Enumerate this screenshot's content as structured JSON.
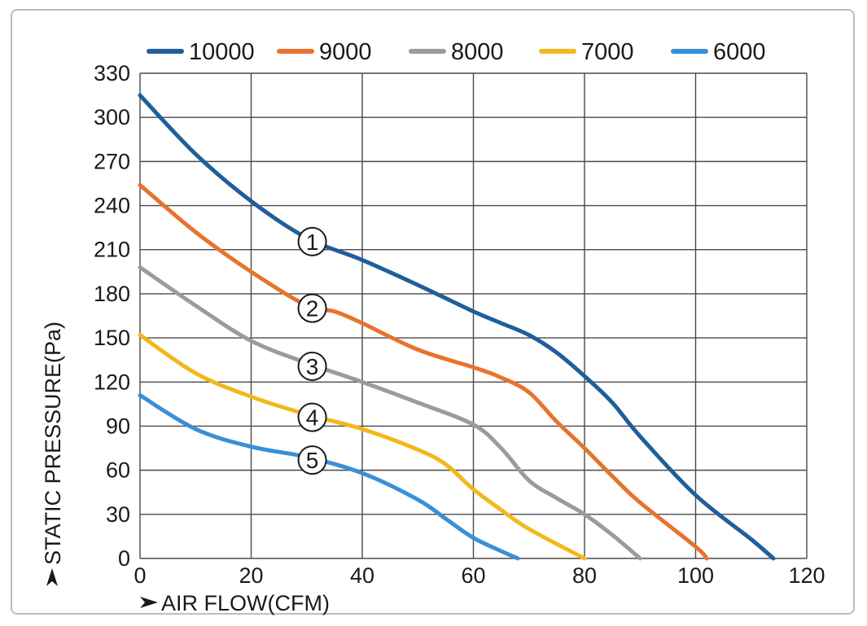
{
  "chart_data": {
    "type": "line",
    "xlabel": "AIR FLOW(CFM)",
    "ylabel": "STATIC PRESSURE(Pa)",
    "xlim": [
      0,
      120
    ],
    "ylim": [
      0,
      330
    ],
    "x_ticks": [
      0,
      20,
      40,
      60,
      80,
      100,
      120
    ],
    "y_ticks": [
      0,
      30,
      60,
      90,
      120,
      150,
      180,
      210,
      240,
      270,
      300,
      330
    ],
    "grid": true,
    "legend_position": "top",
    "series": [
      {
        "name": "10000",
        "color": "#1f5f9a",
        "marker": "①",
        "points": [
          [
            0,
            315
          ],
          [
            10,
            275
          ],
          [
            20,
            243
          ],
          [
            30,
            218
          ],
          [
            40,
            203
          ],
          [
            50,
            186
          ],
          [
            60,
            168
          ],
          [
            65,
            160
          ],
          [
            70,
            152
          ],
          [
            75,
            140
          ],
          [
            80,
            124
          ],
          [
            85,
            106
          ],
          [
            90,
            83
          ],
          [
            100,
            43
          ],
          [
            110,
            13
          ],
          [
            114,
            0
          ]
        ]
      },
      {
        "name": "9000",
        "color": "#e8732e",
        "marker": "②",
        "points": [
          [
            0,
            254
          ],
          [
            10,
            222
          ],
          [
            20,
            195
          ],
          [
            30,
            172
          ],
          [
            35,
            168
          ],
          [
            40,
            160
          ],
          [
            50,
            142
          ],
          [
            60,
            130
          ],
          [
            65,
            123
          ],
          [
            70,
            113
          ],
          [
            75,
            93
          ],
          [
            80,
            75
          ],
          [
            85,
            56
          ],
          [
            90,
            38
          ],
          [
            100,
            8
          ],
          [
            102,
            0
          ]
        ]
      },
      {
        "name": "8000",
        "color": "#9b9b9b",
        "marker": "③",
        "points": [
          [
            0,
            198
          ],
          [
            10,
            172
          ],
          [
            20,
            148
          ],
          [
            30,
            133
          ],
          [
            40,
            120
          ],
          [
            50,
            106
          ],
          [
            60,
            91
          ],
          [
            65,
            75
          ],
          [
            70,
            53
          ],
          [
            75,
            41
          ],
          [
            80,
            30
          ],
          [
            85,
            16
          ],
          [
            90,
            0
          ]
        ]
      },
      {
        "name": "7000",
        "color": "#f2b81b",
        "marker": "④",
        "points": [
          [
            0,
            152
          ],
          [
            10,
            126
          ],
          [
            20,
            110
          ],
          [
            30,
            98
          ],
          [
            40,
            88
          ],
          [
            50,
            74
          ],
          [
            55,
            64
          ],
          [
            60,
            47
          ],
          [
            65,
            33
          ],
          [
            70,
            20
          ],
          [
            80,
            0
          ]
        ]
      },
      {
        "name": "6000",
        "color": "#3a8fd6",
        "marker": "⑤",
        "points": [
          [
            0,
            111
          ],
          [
            10,
            88
          ],
          [
            20,
            76
          ],
          [
            30,
            69
          ],
          [
            40,
            58
          ],
          [
            50,
            40
          ],
          [
            55,
            27
          ],
          [
            60,
            14
          ],
          [
            65,
            5
          ],
          [
            68,
            0
          ]
        ]
      }
    ]
  }
}
